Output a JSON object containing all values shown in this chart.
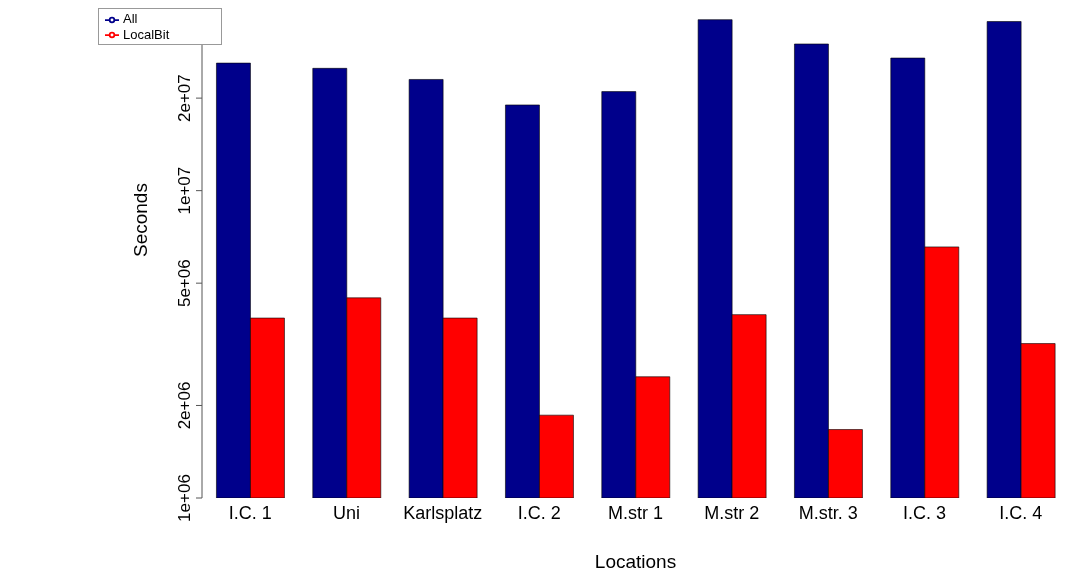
{
  "chart_data": {
    "type": "bar",
    "xlabel": "Locations",
    "ylabel": "Seconds",
    "categories": [
      "I.C. 1",
      "Uni",
      "Karlsplatz",
      "I.C. 2",
      "M.str 1",
      "M.str 2",
      "M.str. 3",
      "I.C. 3",
      "I.C. 4"
    ],
    "series": [
      {
        "name": "All",
        "color": "#00008b",
        "values": [
          26000000,
          25000000,
          23000000,
          19000000,
          21000000,
          36000000,
          30000000,
          27000000,
          35500000
        ]
      },
      {
        "name": "LocalBit",
        "color": "#ff0000",
        "values": [
          3850000,
          4480000,
          3850000,
          1860000,
          2480000,
          3950000,
          1670000,
          6560000,
          3180000
        ]
      }
    ],
    "log": "y",
    "ylim": [
      1000000,
      37000000
    ],
    "yticks": [
      {
        "value": 1000000,
        "label": "1e+06"
      },
      {
        "value": 2000000,
        "label": "2e+06"
      },
      {
        "value": 5000000,
        "label": "5e+06"
      },
      {
        "value": 10000000,
        "label": "1e+07"
      },
      {
        "value": 20000000,
        "label": "2e+07"
      }
    ],
    "grid": false,
    "legend": "top left"
  }
}
